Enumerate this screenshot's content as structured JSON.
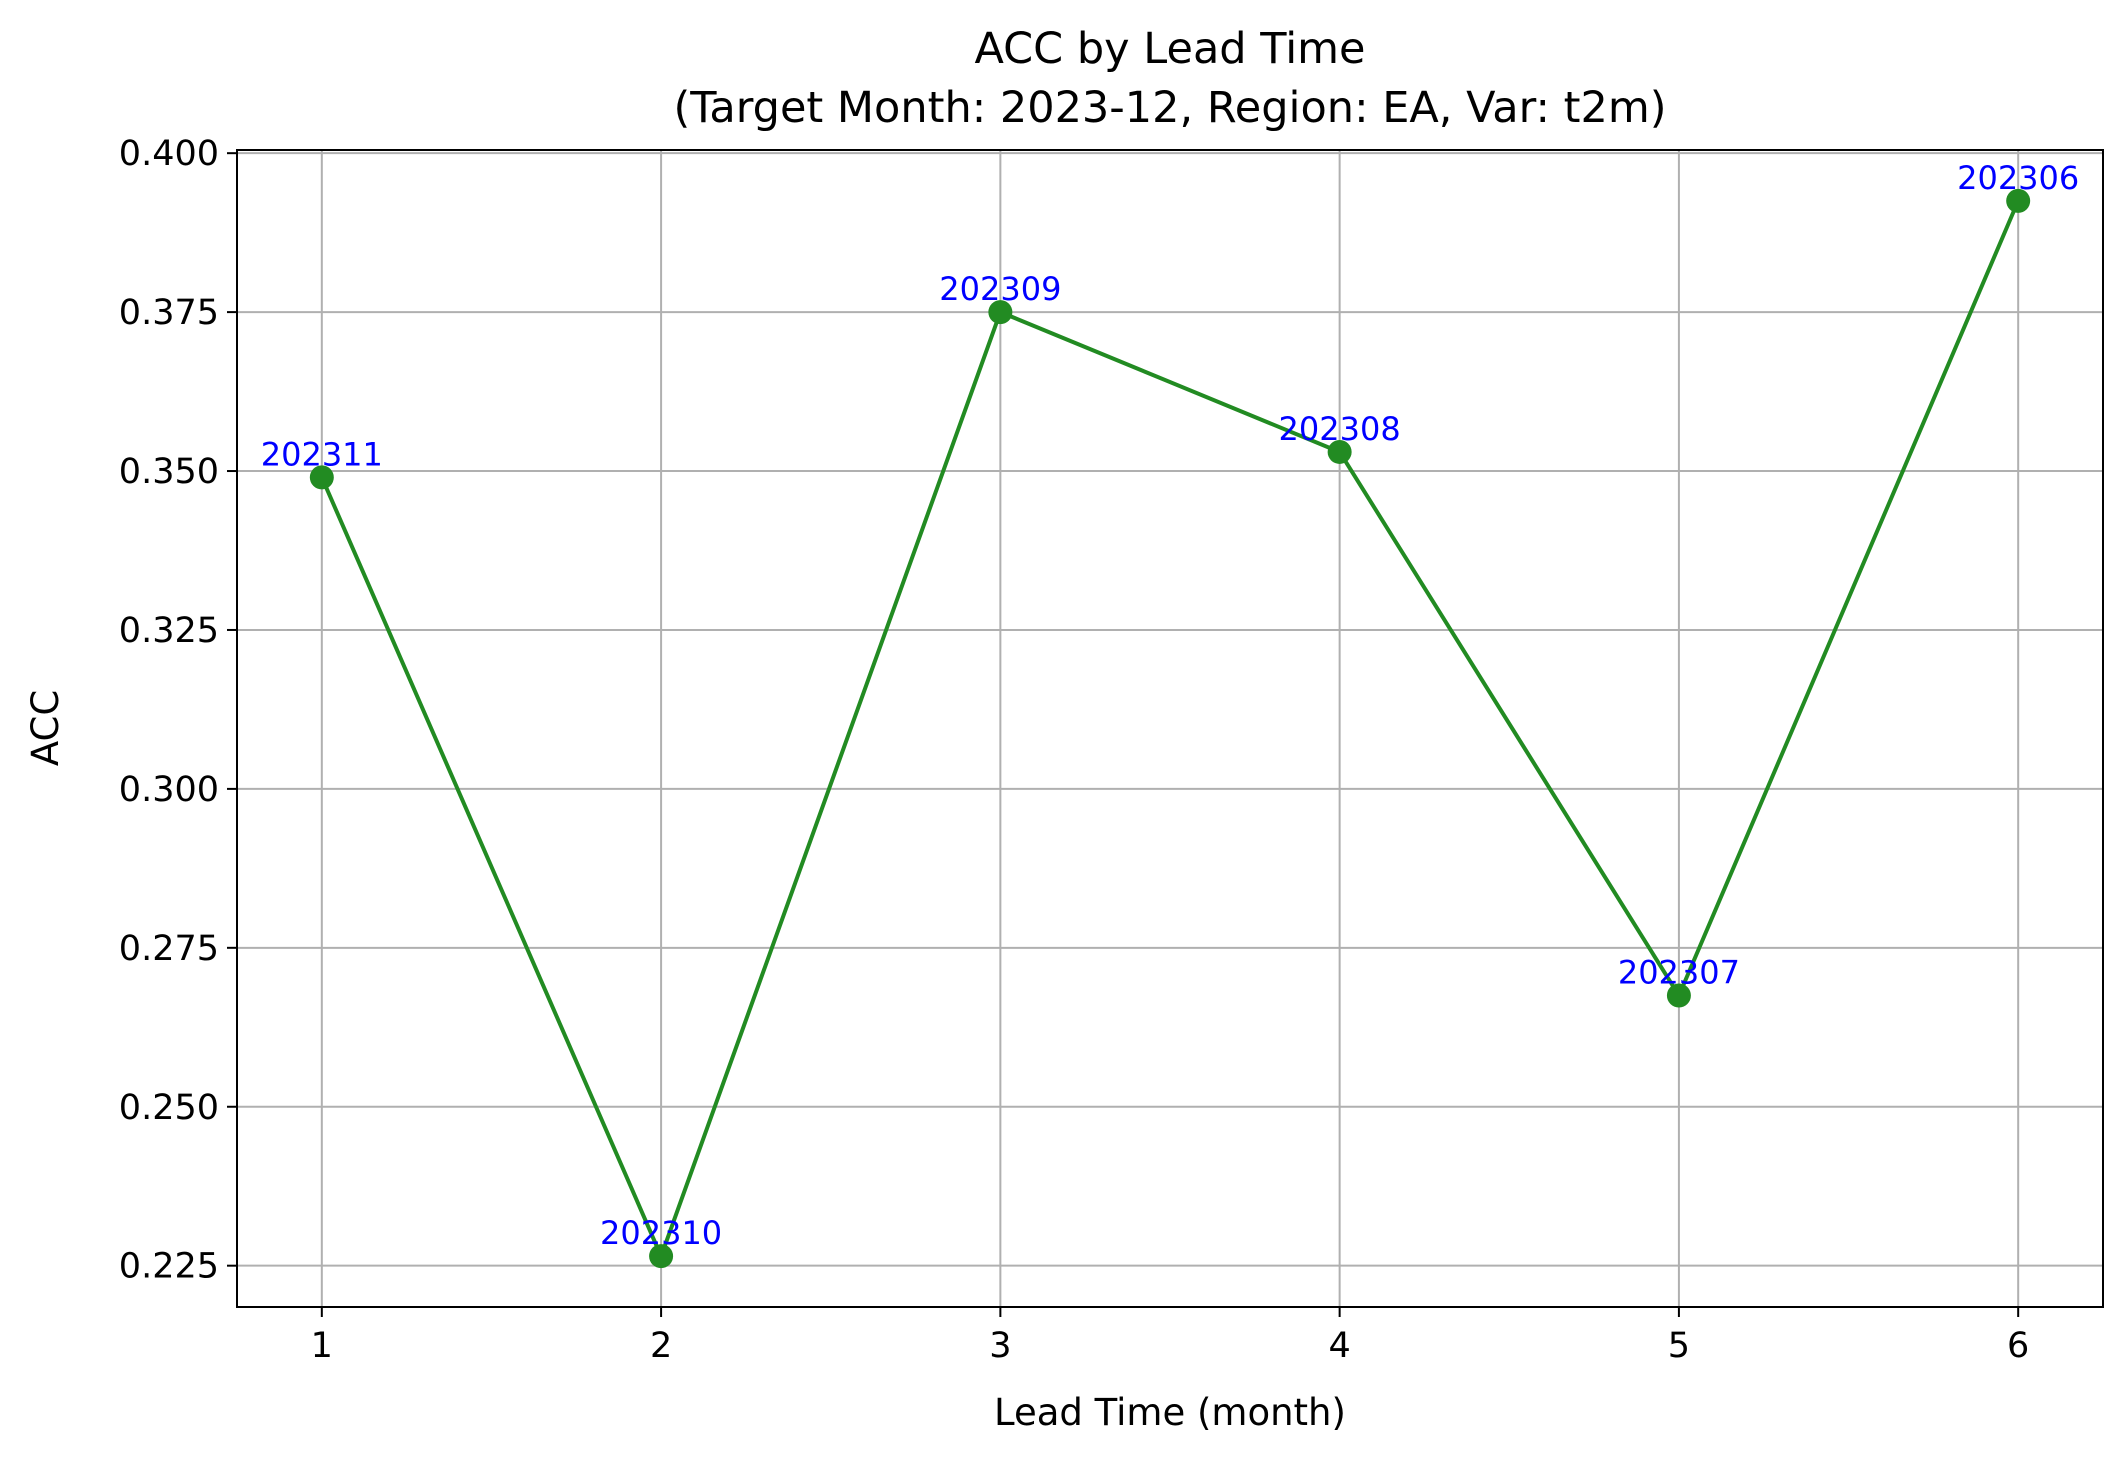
{
  "chart_data": {
    "type": "line",
    "title": "ACC by Lead Time\n(Target Month: 2023-12, Region: EA, Var: t2m)",
    "title_lines": [
      "ACC by Lead Time",
      "(Target Month: 2023-12, Region: EA, Var: t2m)"
    ],
    "xlabel": "Lead Time (month)",
    "ylabel": "ACC",
    "x": [
      1,
      2,
      3,
      4,
      5,
      6
    ],
    "series": [
      {
        "color": "#228b22",
        "marker": "circle",
        "values": [
          0.349,
          0.2265,
          0.375,
          0.353,
          0.2675,
          0.3925
        ],
        "point_labels": [
          "202311",
          "202310",
          "202309",
          "202308",
          "202307",
          "202306"
        ],
        "point_label_color": "#0000ff"
      }
    ],
    "xlim": [
      0.75,
      6.25
    ],
    "ylim": [
      0.2185,
      0.4005
    ],
    "xticks": [
      1,
      2,
      3,
      4,
      5,
      6
    ],
    "xtick_labels": [
      "1",
      "2",
      "3",
      "4",
      "5",
      "6"
    ],
    "yticks": [
      0.225,
      0.25,
      0.275,
      0.3,
      0.325,
      0.35,
      0.375,
      0.4
    ],
    "ytick_labels": [
      "0.225",
      "0.250",
      "0.275",
      "0.300",
      "0.325",
      "0.350",
      "0.375",
      "0.400"
    ],
    "grid": true,
    "legend": "none"
  }
}
